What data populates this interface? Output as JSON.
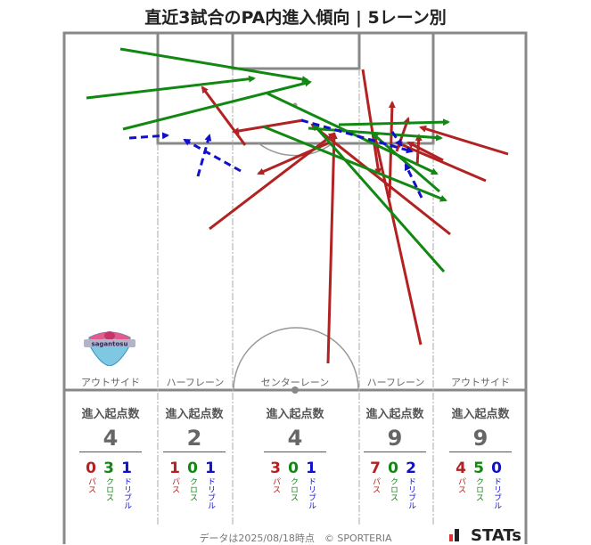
{
  "title": "直近3試合のPA内進入傾向 | 5レーン別",
  "lanes": [
    {
      "label": "アウトサイド",
      "stat_header": "進入起点数",
      "total": "4",
      "pass": "0",
      "cross": "3",
      "dribble": "1"
    },
    {
      "label": "ハーフレーン",
      "stat_header": "進入起点数",
      "total": "2",
      "pass": "1",
      "cross": "0",
      "dribble": "1"
    },
    {
      "label": "センターレーン",
      "stat_header": "進入起点数",
      "total": "4",
      "pass": "3",
      "cross": "0",
      "dribble": "1"
    },
    {
      "label": "ハーフレーン",
      "stat_header": "進入起点数",
      "total": "9",
      "pass": "7",
      "cross": "0",
      "dribble": "2"
    },
    {
      "label": "アウトサイド",
      "stat_header": "進入起点数",
      "total": "9",
      "pass": "4",
      "cross": "5",
      "dribble": "0"
    }
  ],
  "legend_text": {
    "pass": "パス",
    "cross": "クロス",
    "dribble": "ドリブル"
  },
  "colors": {
    "pass": "#b22222",
    "cross": "#118811",
    "dribble": "#1111cc",
    "lines": "#888888"
  },
  "footer": "データは2025/08/18時点　© SPORTERIA",
  "brand": "STATs",
  "logo_text": "sagantosu",
  "chart_data": {
    "type": "arrow-map",
    "arrows": {
      "pass": [
        [
          368,
          408,
          375,
          150
        ],
        [
          235,
          257,
          375,
          150
        ],
        [
          505,
          263,
          350,
          140
        ],
        [
          407,
          78,
          425,
          195
        ],
        [
          472,
          387,
          420,
          150
        ],
        [
          437,
          222,
          440,
          115
        ],
        [
          445,
          170,
          458,
          133
        ],
        [
          468,
          186,
          470,
          152
        ],
        [
          545,
          203,
          445,
          160
        ],
        [
          570,
          173,
          472,
          143
        ],
        [
          497,
          180,
          458,
          160
        ],
        [
          275,
          163,
          227,
          98
        ],
        [
          340,
          135,
          262,
          148
        ],
        [
          370,
          160,
          290,
          195
        ]
      ],
      "cross": [
        [
          135,
          55,
          345,
          90
        ],
        [
          97,
          110,
          285,
          88
        ],
        [
          138,
          145,
          348,
          92
        ],
        [
          295,
          142,
          500,
          225
        ],
        [
          498,
          305,
          352,
          140
        ],
        [
          380,
          140,
          503,
          137
        ],
        [
          493,
          215,
          418,
          150
        ],
        [
          346,
          144,
          495,
          155
        ],
        [
          300,
          105,
          490,
          195
        ]
      ],
      "dribble": [
        [
          145,
          155,
          188,
          152
        ],
        [
          222,
          198,
          235,
          152
        ],
        [
          270,
          192,
          207,
          157
        ],
        [
          473,
          222,
          455,
          185
        ],
        [
          338,
          135,
          462,
          170
        ],
        [
          440,
          148,
          450,
          163
        ]
      ]
    }
  }
}
